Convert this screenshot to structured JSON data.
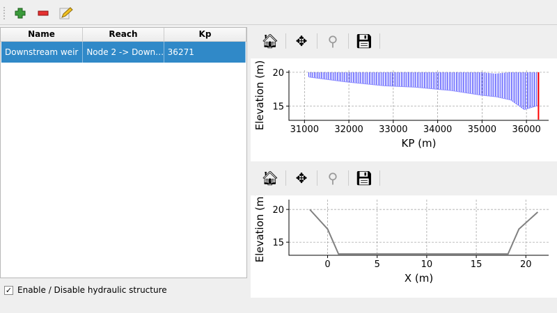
{
  "toolbar": {
    "items": [
      {
        "name": "add-icon"
      },
      {
        "name": "remove-icon"
      },
      {
        "name": "edit-icon"
      }
    ]
  },
  "table": {
    "columns": [
      "Name",
      "Reach",
      "Kp"
    ],
    "rows": [
      {
        "name": "Downstream weir",
        "reach": "Node 2 -> Down…",
        "kp": "36271",
        "selected": true
      }
    ]
  },
  "enable_checkbox": {
    "label": "Enable / Disable hydraulic structure",
    "checked": true,
    "mark": "✓"
  },
  "nav_toolbar": {
    "buttons": [
      "home-icon",
      "pan-icon",
      "zoom-icon",
      "save-icon"
    ]
  },
  "colors": {
    "selection": "#3089c8",
    "bed_fill": "#0000ff",
    "marker": "#ff0000",
    "profile": "#808080"
  },
  "chart_data": [
    {
      "type": "line",
      "xlabel": "KP (m)",
      "ylabel": "Elevation (m)",
      "xlim": [
        30650,
        36500
      ],
      "ylim": [
        12.9,
        20.3
      ],
      "grid": true,
      "xticks": [
        31000,
        32000,
        33000,
        34000,
        35000,
        36000
      ],
      "yticks": [
        15,
        20
      ],
      "series": [
        {
          "role": "bed",
          "x": [
            31100,
            31900,
            32800,
            33500,
            34300,
            35000,
            35300,
            35650,
            35950,
            36271
          ],
          "y": [
            19.3,
            18.6,
            18.0,
            17.8,
            17.3,
            16.6,
            16.4,
            15.9,
            14.5,
            15.1
          ]
        },
        {
          "role": "water",
          "x": [
            31100,
            35000,
            35300,
            35600,
            36271
          ],
          "y": [
            20.0,
            20.0,
            19.8,
            20.0,
            20.0
          ]
        }
      ],
      "marker": {
        "x": 36271,
        "y": [
          13.0,
          20.0
        ]
      }
    },
    {
      "type": "line",
      "xlabel": "X (m)",
      "ylabel": "Elevation (m)",
      "xlim": [
        -3.9,
        22.3
      ],
      "ylim": [
        13.0,
        21.5
      ],
      "grid": true,
      "xticks": [
        0,
        5,
        10,
        15,
        20
      ],
      "yticks": [
        15,
        20
      ],
      "series": [
        {
          "x": [
            -1.8,
            0,
            1.1,
            18.2,
            19.3,
            21.2
          ],
          "y": [
            20.0,
            17.0,
            13.2,
            13.2,
            17.0,
            19.6
          ]
        }
      ]
    }
  ]
}
